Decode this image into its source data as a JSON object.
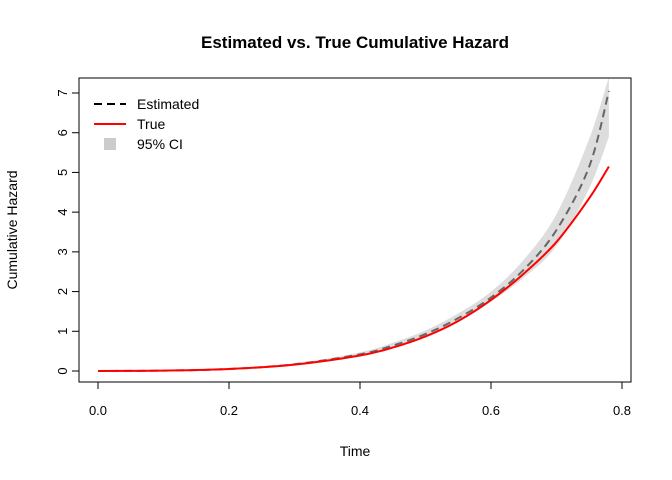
{
  "chart_data": {
    "type": "line",
    "title": "Estimated vs. True Cumulative Hazard",
    "xlabel": "Time",
    "ylabel": "Cumulative Hazard",
    "xlim": [
      0,
      0.8
    ],
    "ylim": [
      0,
      7
    ],
    "xticks": [
      0.0,
      0.2,
      0.4,
      0.6,
      0.8
    ],
    "xtick_labels": [
      "0.0",
      "0.2",
      "0.4",
      "0.6",
      "0.8"
    ],
    "yticks": [
      0,
      1,
      2,
      3,
      4,
      5,
      6,
      7
    ],
    "ytick_labels": [
      "0",
      "1",
      "2",
      "3",
      "4",
      "5",
      "6",
      "7"
    ],
    "grid": false,
    "legend_position": "top-left",
    "x": [
      0.0,
      0.1,
      0.2,
      0.3,
      0.4,
      0.45,
      0.5,
      0.55,
      0.6,
      0.65,
      0.7,
      0.75,
      0.78
    ],
    "series": [
      {
        "name": "Estimated",
        "style": "dashed",
        "color": "#000000",
        "values": [
          0.0,
          0.01,
          0.05,
          0.17,
          0.42,
          0.64,
          0.93,
          1.33,
          1.85,
          2.55,
          3.55,
          5.15,
          7.05
        ]
      },
      {
        "name": "True",
        "style": "solid",
        "color": "#ff0000",
        "values": [
          0.0,
          0.01,
          0.05,
          0.16,
          0.39,
          0.59,
          0.87,
          1.26,
          1.79,
          2.45,
          3.25,
          4.35,
          5.15
        ]
      }
    ],
    "confidence_band": {
      "name": "95% CI",
      "color": "#dddddd",
      "lower": [
        0.0,
        0.01,
        0.04,
        0.15,
        0.37,
        0.57,
        0.85,
        1.23,
        1.74,
        2.35,
        3.15,
        4.6,
        5.9
      ],
      "upper": [
        0.0,
        0.02,
        0.06,
        0.19,
        0.47,
        0.71,
        1.02,
        1.45,
        2.0,
        2.8,
        3.95,
        5.85,
        7.4
      ]
    },
    "legend": [
      {
        "label": "Estimated",
        "kind": "dashed-line",
        "color": "#000000"
      },
      {
        "label": "True",
        "kind": "solid-line",
        "color": "#ff0000"
      },
      {
        "label": "95% CI",
        "kind": "swatch",
        "color": "#cccccc"
      }
    ]
  }
}
